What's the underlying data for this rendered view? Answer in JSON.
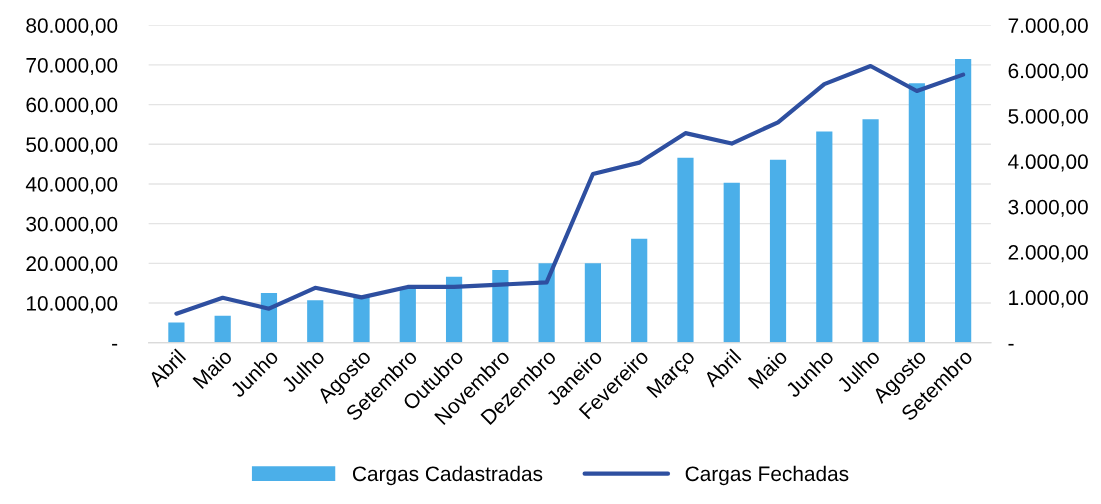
{
  "chart_data": {
    "type": "bar",
    "categories": [
      "Abril",
      "Maio",
      "Junho",
      "Julho",
      "Agosto",
      "Setembro",
      "Outubro",
      "Novembro",
      "Dezembro",
      "Janeiro",
      "Fevereiro",
      "Março",
      "Abril",
      "Maio",
      "Junho",
      "Julho",
      "Agosto",
      "Setembro"
    ],
    "series": [
      {
        "name": "Cargas Cadastradas",
        "color": "#4bafe9",
        "values": [
          5100,
          6800,
          12500,
          10700,
          11500,
          13700,
          16600,
          18300,
          20000,
          20000,
          26200,
          46600,
          40300,
          46100,
          53200,
          56300,
          65400,
          71500
        ]
      },
      {
        "name": "Cargas Fechadas",
        "type": "line",
        "axis": "y2",
        "color": "#2e4fa0",
        "values": [
          640,
          990,
          750,
          1210,
          1000,
          1230,
          1230,
          1280,
          1330,
          3720,
          3970,
          4620,
          4390,
          4860,
          5700,
          6100,
          5550,
          5910
        ]
      }
    ],
    "ylim": [
      0,
      80000
    ],
    "yticks": [
      {
        "value": 0,
        "label": "-"
      },
      {
        "value": 10000,
        "label": "10.000,00"
      },
      {
        "value": 20000,
        "label": "20.000,00"
      },
      {
        "value": 30000,
        "label": "30.000,00"
      },
      {
        "value": 40000,
        "label": "40.000,00"
      },
      {
        "value": 50000,
        "label": "50.000,00"
      },
      {
        "value": 60000,
        "label": "60.000,00"
      },
      {
        "value": 70000,
        "label": "70.000,00"
      },
      {
        "value": 80000,
        "label": "80.000,00"
      }
    ],
    "y2lim": [
      0,
      7000
    ],
    "y2ticks": [
      {
        "value": 0,
        "label": "-"
      },
      {
        "value": 1000,
        "label": "1.000,00"
      },
      {
        "value": 2000,
        "label": "2.000,00"
      },
      {
        "value": 3000,
        "label": "3.000,00"
      },
      {
        "value": 4000,
        "label": "4.000,00"
      },
      {
        "value": 5000,
        "label": "5.000,00"
      },
      {
        "value": 6000,
        "label": "6.000,00"
      },
      {
        "value": 7000,
        "label": "7.000,00"
      }
    ],
    "grid": "y",
    "legend": "bottom"
  }
}
